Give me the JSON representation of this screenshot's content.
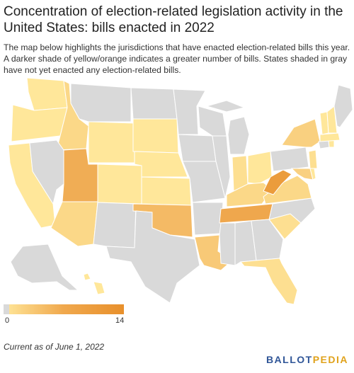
{
  "title": "Concentration of election-related legislation activity in the United States: bills enacted in 2022",
  "description": "The map below highlights the jurisdictions that have enacted election-related bills this year. A darker shade of yellow/orange indicates a greater number of bills. States shaded in gray have not yet enacted any election-related bills.",
  "legend": {
    "min_label": "0",
    "max_label": "14",
    "min_value": 0,
    "max_value": 14
  },
  "footnote": "Current as of June 1, 2022",
  "brand": {
    "part1": "BALLOT",
    "part2": "PEDIA"
  },
  "colors": {
    "none": "#d9d9d9",
    "low": "#ffe79a",
    "mid": "#f3b661",
    "high": "#e8902c"
  },
  "map_data": {
    "WA": 1,
    "OR": 1,
    "CA": 1,
    "ID": 3,
    "NV": 0,
    "UT": 9,
    "AZ": 3,
    "MT": 0,
    "WY": 1,
    "CO": 1,
    "NM": 0,
    "ND": 0,
    "SD": 1,
    "NE": 1,
    "KS": 1,
    "OK": 7,
    "TX": 0,
    "MN": 0,
    "IA": 0,
    "MO": 0,
    "AR": 0,
    "LA": 5,
    "WI": 0,
    "IL": 0,
    "MS": 0,
    "MI": 0,
    "IN": 2,
    "KY": 3,
    "TN": 10,
    "AL": 0,
    "OH": 1,
    "WV": 12,
    "VA": 3,
    "NC": 0,
    "SC": 2,
    "GA": 0,
    "FL": 2,
    "PA": 0,
    "NY": 4,
    "VT": 1,
    "NH": 1,
    "ME": 0,
    "MA": 1,
    "CT": 0,
    "RI": 1,
    "NJ": 2,
    "DE": 1,
    "MD": 4,
    "AK": 0,
    "HI": 1
  }
}
